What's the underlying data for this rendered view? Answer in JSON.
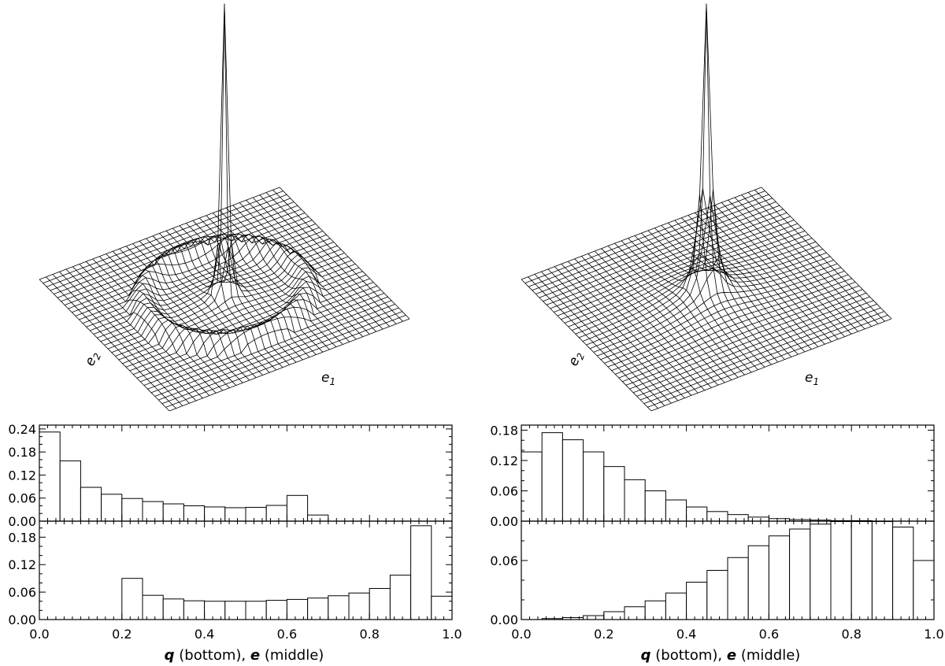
{
  "figure": {
    "xlabel": {
      "var1": "q",
      "text1": " (bottom), ",
      "var2": "e",
      "text2": " (middle)"
    },
    "surface_axis_labels": {
      "e1": "e",
      "e1_sub": "1",
      "e2": "e",
      "e2_sub": "2"
    }
  },
  "chart_data": [
    {
      "type": "surface",
      "panel": "top-left",
      "x_axis_label": "e1",
      "y_axis_label": "e2",
      "grid": [
        37,
        37
      ],
      "features": "sharp central spike with a ring-shaped ridge around it",
      "spike_height": 1.0,
      "ring_radius": 0.6,
      "ring_height": 0.055
    },
    {
      "type": "surface",
      "panel": "top-right",
      "x_axis_label": "e1",
      "y_axis_label": "e2",
      "grid": [
        37,
        37
      ],
      "features": "sharp central spike with smoothly decaying wings",
      "spike_height": 1.0
    },
    {
      "type": "bar",
      "panel": "left-middle",
      "bin_width": 0.05,
      "xlim": [
        0.0,
        1.0
      ],
      "ylim": [
        0.0,
        0.25
      ],
      "yticks": [
        "0.00",
        "0.06",
        "0.12",
        "0.18",
        "0.24"
      ],
      "ytick_values": [
        0.0,
        0.06,
        0.12,
        0.18,
        0.24
      ],
      "values": [
        0.232,
        0.157,
        0.088,
        0.07,
        0.059,
        0.051,
        0.045,
        0.04,
        0.037,
        0.035,
        0.036,
        0.041,
        0.067,
        0.016,
        0,
        0,
        0,
        0,
        0,
        0
      ]
    },
    {
      "type": "bar",
      "panel": "left-bottom",
      "bin_width": 0.05,
      "xlim": [
        0.0,
        1.0
      ],
      "ylim": [
        0.0,
        0.215
      ],
      "yticks": [
        "0.00",
        "0.06",
        "0.12",
        "0.18"
      ],
      "ytick_values": [
        0.0,
        0.06,
        0.12,
        0.18
      ],
      "xticks": [
        "0.0",
        "0.2",
        "0.4",
        "0.6",
        "0.8",
        "1.0"
      ],
      "xtick_values": [
        0.0,
        0.2,
        0.4,
        0.6,
        0.8,
        1.0
      ],
      "values": [
        0,
        0,
        0,
        0,
        0.09,
        0.053,
        0.045,
        0.041,
        0.04,
        0.04,
        0.04,
        0.042,
        0.044,
        0.047,
        0.052,
        0.058,
        0.068,
        0.097,
        0.205,
        0.051
      ]
    },
    {
      "type": "bar",
      "panel": "right-middle",
      "bin_width": 0.05,
      "xlim": [
        0.0,
        1.0
      ],
      "ylim": [
        0.0,
        0.19
      ],
      "yticks": [
        "0.00",
        "0.06",
        "0.12",
        "0.18"
      ],
      "ytick_values": [
        0.0,
        0.06,
        0.12,
        0.18
      ],
      "values": [
        0.137,
        0.175,
        0.161,
        0.137,
        0.108,
        0.082,
        0.06,
        0.042,
        0.028,
        0.019,
        0.013,
        0.008,
        0.005,
        0.003,
        0.002,
        0.001,
        0.001,
        0,
        0,
        0
      ]
    },
    {
      "type": "bar",
      "panel": "right-bottom",
      "bin_width": 0.05,
      "xlim": [
        0.0,
        1.0
      ],
      "ylim": [
        0.0,
        0.1
      ],
      "yticks": [
        "0.00",
        "0.06"
      ],
      "ytick_values": [
        0.0,
        0.06
      ],
      "xticks": [
        "0.0",
        "0.2",
        "0.4",
        "0.6",
        "0.8",
        "1.0"
      ],
      "xtick_values": [
        0.0,
        0.2,
        0.4,
        0.6,
        0.8,
        1.0
      ],
      "values": [
        0.0,
        0.001,
        0.002,
        0.004,
        0.008,
        0.013,
        0.019,
        0.027,
        0.038,
        0.05,
        0.063,
        0.075,
        0.085,
        0.092,
        0.097,
        0.1,
        0.101,
        0.1,
        0.094,
        0.06
      ]
    }
  ]
}
